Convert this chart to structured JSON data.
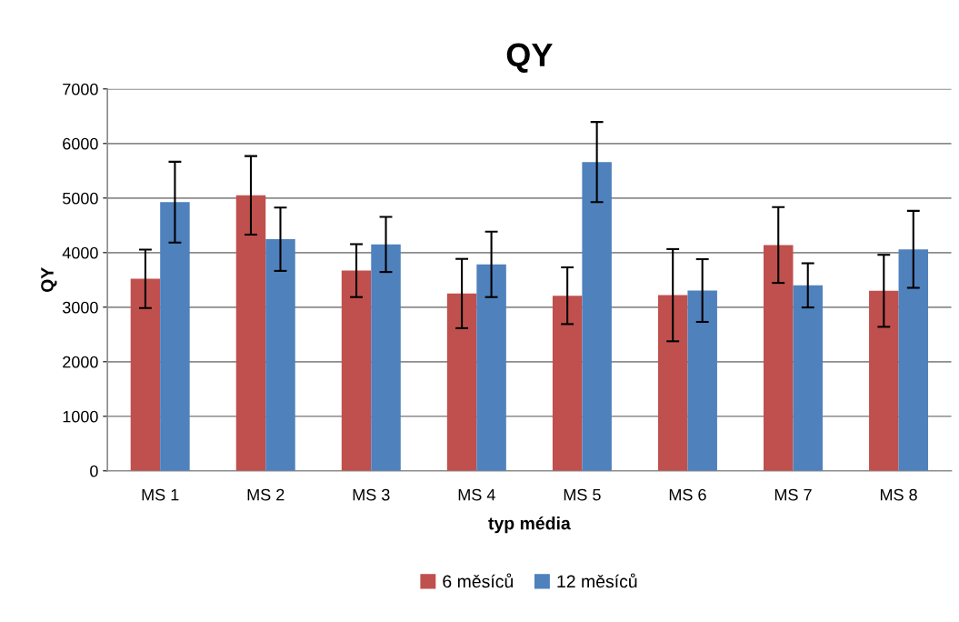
{
  "chart_data": {
    "type": "bar",
    "title": "QY",
    "xlabel": "typ média",
    "ylabel": "QY",
    "categories": [
      "MS 1",
      "MS 2",
      "MS 3",
      "MS 4",
      "MS 5",
      "MS 6",
      "MS 7",
      "MS 8"
    ],
    "series": [
      {
        "name": "6 měsíců",
        "color": "#c0504d",
        "values": [
          3520,
          5050,
          3670,
          3250,
          3210,
          3220,
          4140,
          3300
        ],
        "errors": [
          535,
          720,
          485,
          635,
          520,
          845,
          695,
          660
        ]
      },
      {
        "name": "12 měsíců",
        "color": "#4f81bd",
        "values": [
          4925,
          4245,
          4150,
          3785,
          5660,
          3305,
          3400,
          4060
        ],
        "errors": [
          740,
          580,
          505,
          600,
          735,
          575,
          405,
          705
        ]
      }
    ],
    "ylim": [
      0,
      7000
    ],
    "yticks": [
      0,
      1000,
      2000,
      3000,
      4000,
      5000,
      6000,
      7000
    ],
    "grid": "y",
    "legend": "bottom"
  }
}
